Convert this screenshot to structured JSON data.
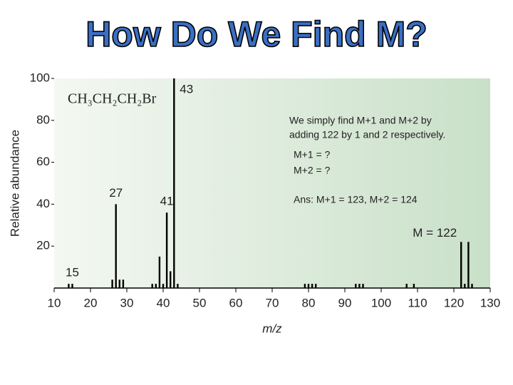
{
  "chart_data": {
    "type": "bar",
    "title": "How Do We Find M?",
    "xlabel": "m/z",
    "ylabel": "Relative abundance",
    "compound": "CH₃CH₂CH₂Br",
    "annotations": [
      "We simply find M+1 and M+2 by",
      "adding 122 by 1 and 2 respectively.",
      "M+1 = ?",
      "M+2 = ?",
      "Ans: M+1 = 123, M+2 = 124"
    ],
    "x": [
      14,
      15,
      26,
      27,
      28,
      29,
      37,
      38,
      39,
      40,
      41,
      42,
      43,
      44,
      79,
      80,
      81,
      82,
      93,
      94,
      95,
      107,
      109,
      122,
      123,
      124,
      125
    ],
    "values": [
      2,
      2,
      4,
      40,
      4,
      4,
      2,
      2,
      15,
      2,
      36,
      8,
      100,
      2,
      2,
      2,
      2,
      2,
      2,
      2,
      2,
      2,
      2,
      22,
      2,
      22,
      2
    ],
    "peak_labels": [
      null,
      "15",
      null,
      "27",
      null,
      null,
      null,
      null,
      null,
      null,
      "41",
      null,
      "43",
      null,
      null,
      null,
      null,
      null,
      null,
      null,
      null,
      null,
      null,
      "M = 122",
      null,
      null,
      null
    ],
    "color": "#000000",
    "xlim": [
      10,
      130
    ],
    "xticks": [
      10,
      20,
      30,
      40,
      50,
      60,
      70,
      80,
      90,
      100,
      110,
      120,
      130
    ],
    "ylim": [
      0,
      100
    ],
    "yticks": [
      20,
      40,
      60,
      80,
      100
    ]
  }
}
